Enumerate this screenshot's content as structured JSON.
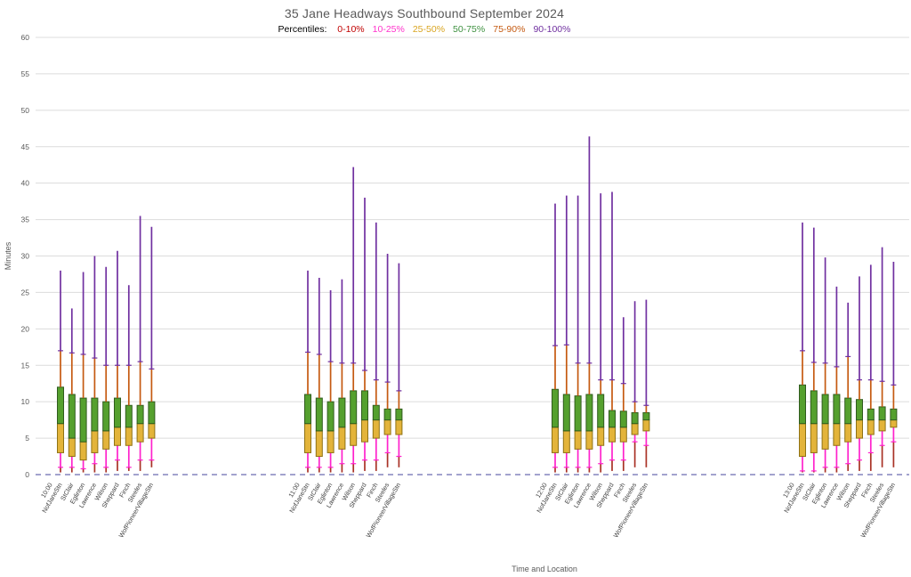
{
  "title": "35 Jane Headways Southbound September 2024",
  "legend": {
    "label": "Percentiles:",
    "items": [
      {
        "label": "0-10%",
        "color": "#C00000"
      },
      {
        "label": "10-25%",
        "color": "#FF33CC"
      },
      {
        "label": "25-50%",
        "color": "#D9A521"
      },
      {
        "label": "50-75%",
        "color": "#3F9140"
      },
      {
        "label": "75-90%",
        "color": "#C55A11"
      },
      {
        "label": "90-100%",
        "color": "#7030A0"
      }
    ]
  },
  "chart_data": {
    "type": "boxplot",
    "title": "35 Jane Headways Southbound September 2024",
    "xlabel": "Time and Location",
    "ylabel": "Minutes",
    "ylim": [
      0,
      60
    ],
    "ytick_step": 5,
    "grid": true,
    "percentile_ranges": [
      "0-10%",
      "10-25%",
      "25-50%",
      "50-75%",
      "75-90%",
      "90-100%"
    ],
    "percentile_colors": {
      "p0_10": "#A93226",
      "p10_25": "#FF22CC",
      "p25_50_fill": "#E3B43A",
      "p25_50_stroke": "#8F7214",
      "p50_75_fill": "#55A02E",
      "p50_75_stroke": "#2F5B1D",
      "p75_90": "#C55A11",
      "p90_100": "#7030A0"
    },
    "box_values_order": [
      "p0",
      "p10",
      "p25",
      "p50",
      "p75",
      "p90",
      "p100"
    ],
    "stations": [
      "NofJaneStn",
      "StClair",
      "Eglinton",
      "Lawrence",
      "Wilson",
      "Sheppard",
      "Finch",
      "Steeles",
      "WofPioneerVillageStn"
    ],
    "groups": [
      {
        "time": "10:00",
        "boxes": [
          [
            0.3,
            1.0,
            3.0,
            7.0,
            12.0,
            17.0,
            28.0
          ],
          [
            0.3,
            1.0,
            2.5,
            5.0,
            11.0,
            16.7,
            22.8
          ],
          [
            0.3,
            0.8,
            2.0,
            4.5,
            10.5,
            16.5,
            27.8
          ],
          [
            0.3,
            1.5,
            3.0,
            6.0,
            10.5,
            16.0,
            30.0
          ],
          [
            0.3,
            1.0,
            3.5,
            6.0,
            10.0,
            15.0,
            28.5
          ],
          [
            0.5,
            2.0,
            4.0,
            6.5,
            10.5,
            15.0,
            30.7
          ],
          [
            0.5,
            1.0,
            4.0,
            6.5,
            9.5,
            15.0,
            26.0
          ],
          [
            0.5,
            2.0,
            4.5,
            7.0,
            9.5,
            15.5,
            35.5
          ],
          [
            1.0,
            2.0,
            5.0,
            7.0,
            10.0,
            14.5,
            34.0
          ]
        ]
      },
      {
        "time": "11:00",
        "boxes": [
          [
            0.3,
            1.0,
            3.0,
            7.0,
            11.0,
            16.8,
            28.0
          ],
          [
            0.3,
            1.0,
            2.5,
            6.0,
            10.5,
            16.5,
            27.0
          ],
          [
            0.3,
            1.0,
            3.0,
            6.0,
            10.0,
            15.5,
            25.3
          ],
          [
            0.3,
            1.5,
            3.5,
            6.5,
            10.5,
            15.3,
            26.8
          ],
          [
            0.3,
            1.5,
            4.0,
            7.0,
            11.5,
            15.3,
            42.2
          ],
          [
            0.5,
            2.0,
            4.5,
            7.5,
            11.5,
            14.3,
            38.0
          ],
          [
            0.5,
            2.0,
            5.0,
            7.5,
            9.5,
            13.0,
            34.6
          ],
          [
            1.0,
            3.0,
            5.5,
            7.5,
            9.0,
            12.7,
            30.3
          ],
          [
            1.0,
            2.5,
            5.5,
            7.5,
            9.0,
            11.5,
            29.0
          ]
        ]
      },
      {
        "time": "12:00",
        "boxes": [
          [
            0.3,
            1.0,
            3.0,
            6.5,
            11.7,
            17.7,
            37.2
          ],
          [
            0.3,
            1.0,
            3.0,
            6.0,
            11.0,
            17.8,
            38.3
          ],
          [
            0.3,
            1.0,
            3.5,
            6.0,
            10.8,
            15.3,
            38.3
          ],
          [
            0.3,
            1.0,
            3.5,
            6.0,
            11.0,
            15.3,
            46.4
          ],
          [
            0.3,
            1.5,
            4.0,
            6.5,
            11.0,
            13.0,
            38.6
          ],
          [
            0.5,
            2.0,
            4.5,
            6.5,
            8.8,
            13.0,
            38.8
          ],
          [
            0.5,
            2.0,
            4.5,
            6.5,
            8.7,
            12.5,
            21.6
          ],
          [
            1.0,
            4.5,
            5.5,
            7.0,
            8.5,
            10.0,
            23.8
          ],
          [
            1.0,
            4.0,
            6.0,
            7.5,
            8.5,
            9.5,
            24.0
          ]
        ]
      },
      {
        "time": "13:00",
        "boxes": [
          [
            0.3,
            0.5,
            2.5,
            7.0,
            12.3,
            17.0,
            34.6
          ],
          [
            0.3,
            0.5,
            3.0,
            7.0,
            11.5,
            15.4,
            33.9
          ],
          [
            0.3,
            1.0,
            3.5,
            7.0,
            11.0,
            15.3,
            29.8
          ],
          [
            0.3,
            1.0,
            4.0,
            7.0,
            11.0,
            14.8,
            25.8
          ],
          [
            0.5,
            1.5,
            4.5,
            7.0,
            10.5,
            16.2,
            23.6
          ],
          [
            0.5,
            2.0,
            5.0,
            7.5,
            10.3,
            13.0,
            27.2
          ],
          [
            0.5,
            3.0,
            5.5,
            7.5,
            9.0,
            13.0,
            28.8
          ],
          [
            1.0,
            4.0,
            6.0,
            7.5,
            9.3,
            12.8,
            31.2
          ],
          [
            1.0,
            4.5,
            6.5,
            7.5,
            9.0,
            12.3,
            29.2
          ]
        ]
      }
    ]
  }
}
